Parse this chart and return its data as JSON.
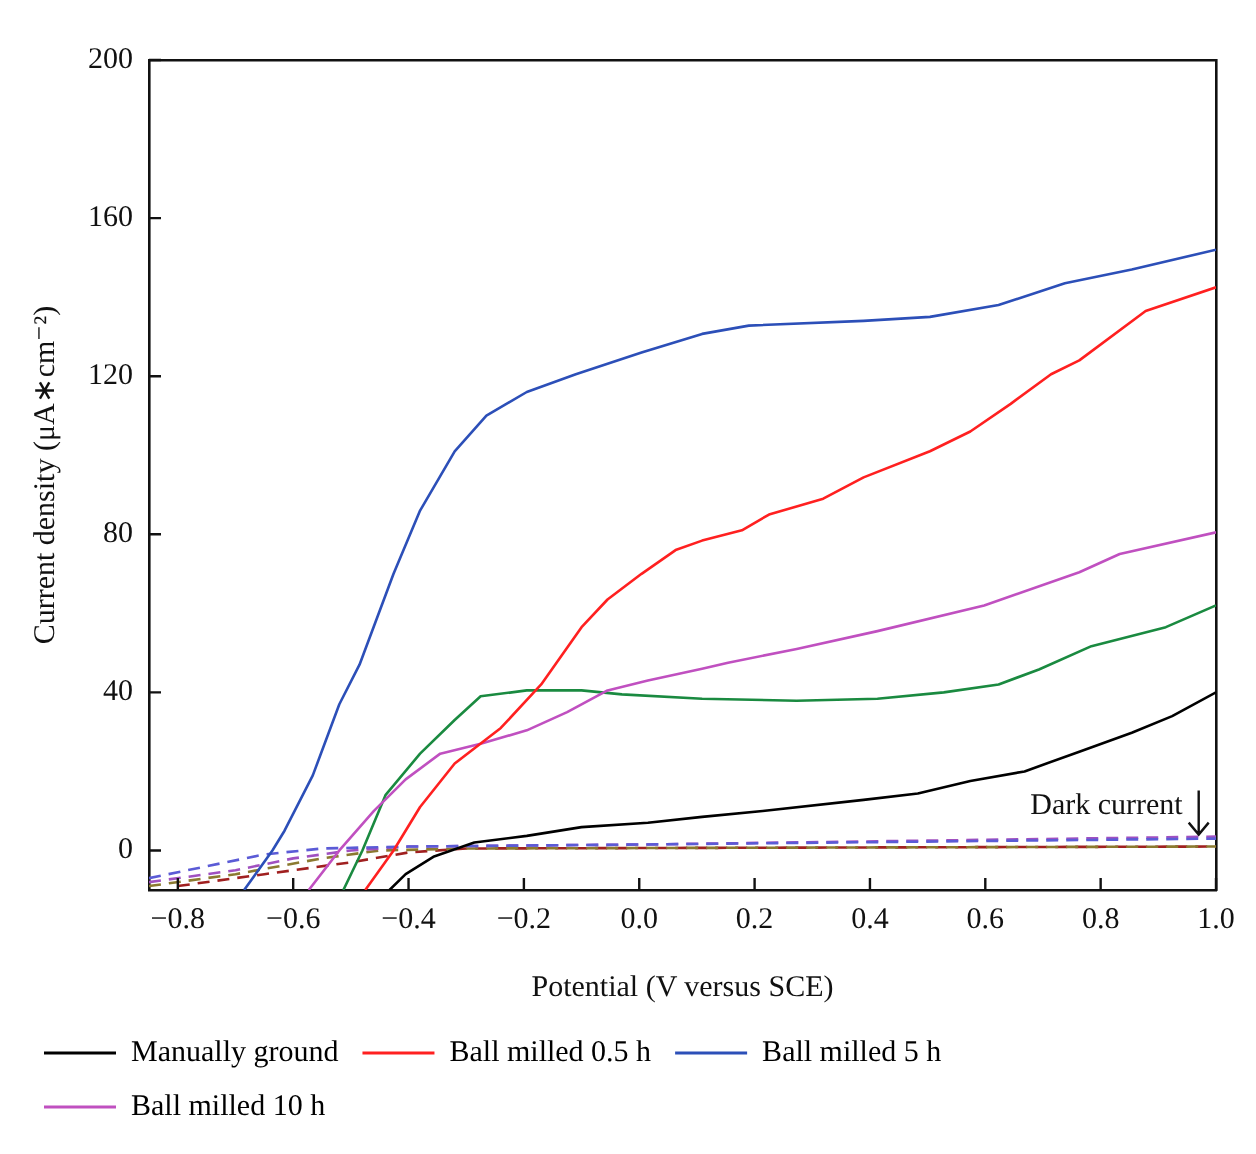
{
  "chart_data": {
    "type": "line",
    "xlabel": "Potential (V versus SCE)",
    "ylabel": "Current density (μA∗cm⁻²)",
    "xlim": [
      -0.85,
      1.0
    ],
    "xticks": [
      {
        "value": -0.8,
        "label": "−0.8"
      },
      {
        "value": -0.6,
        "label": "−0.6"
      },
      {
        "value": -0.4,
        "label": "−0.4"
      },
      {
        "value": -0.2,
        "label": "−0.2"
      },
      {
        "value": 0,
        "label": "0.0"
      },
      {
        "value": 0.2,
        "label": "0.2"
      },
      {
        "value": 0.4,
        "label": "0.4"
      },
      {
        "value": 0.6,
        "label": "0.6"
      },
      {
        "value": 0.8,
        "label": "0.8"
      },
      {
        "value": 1.0,
        "label": "1.0"
      }
    ],
    "ylim": [
      -10,
      200
    ],
    "yticks": [
      0,
      40,
      80,
      120,
      160,
      200
    ],
    "grid": false,
    "legend": "bottom",
    "marker": "none",
    "annotations": [
      {
        "text": "Dark current",
        "x": 0.97,
        "y": 3
      }
    ],
    "series": [
      {
        "name": "Manually ground",
        "color": "#000000",
        "line_style": "solid",
        "x": [
          -0.433,
          -0.405,
          -0.357,
          -0.286,
          -0.195,
          -0.1,
          0.015,
          0.109,
          0.214,
          0.389,
          0.483,
          0.574,
          0.668,
          0.763,
          0.854,
          0.924,
          1.0
        ],
        "values": [
          -10,
          -6,
          -1.6,
          2,
          3.7,
          5.9,
          7,
          8.5,
          10,
          12.8,
          14.4,
          17.6,
          20,
          25,
          29.8,
          34,
          40
        ]
      },
      {
        "name": "Ball milled 0.5 h",
        "color": "#ff2020",
        "line_style": "solid",
        "x": [
          -0.475,
          -0.426,
          -0.38,
          -0.32,
          -0.24,
          -0.17,
          -0.1,
          -0.055,
          0.004,
          0.063,
          0.109,
          0.178,
          0.225,
          0.319,
          0.389,
          0.504,
          0.574,
          0.644,
          0.714,
          0.763,
          0.878,
          1.0
        ],
        "values": [
          -10,
          0,
          11,
          22,
          31,
          42,
          56.5,
          63.5,
          70,
          76,
          78.4,
          81,
          85,
          89,
          94.4,
          101,
          106,
          113,
          120.5,
          124,
          136.5,
          142.5
        ]
      },
      {
        "name": "Ball milled 5 h",
        "color": "#2c4fb8",
        "line_style": "solid",
        "x": [
          -0.685,
          -0.636,
          -0.615,
          -0.566,
          -0.52,
          -0.485,
          -0.426,
          -0.38,
          -0.32,
          -0.265,
          -0.195,
          -0.11,
          0.004,
          0.109,
          0.19,
          0.389,
          0.504,
          0.623,
          0.738,
          0.854,
          1.0
        ],
        "values": [
          -10,
          0,
          5,
          19,
          37,
          47,
          70,
          86,
          101,
          110,
          116,
          120.5,
          126,
          130.7,
          132.8,
          134,
          135,
          138,
          143.5,
          147,
          152
        ]
      },
      {
        "name": "Ball milled 10 h",
        "color": "#c050c0",
        "line_style": "solid",
        "x": [
          -0.573,
          -0.52,
          -0.46,
          -0.405,
          -0.345,
          -0.275,
          -0.195,
          -0.125,
          -0.055,
          0.015,
          0.109,
          0.154,
          0.273,
          0.413,
          0.598,
          0.763,
          0.833,
          1.0
        ],
        "values": [
          -10,
          0,
          10,
          18,
          24.5,
          27,
          30.4,
          35,
          40.5,
          43,
          46,
          47.5,
          51,
          55.5,
          62,
          70.4,
          75,
          80.5
        ]
      },
      {
        "color": "#1a8a40",
        "line_style": "solid",
        "x": [
          -0.513,
          -0.48,
          -0.44,
          -0.38,
          -0.32,
          -0.275,
          -0.195,
          -0.1,
          -0.03,
          0.109,
          0.273,
          0.413,
          0.528,
          0.623,
          0.693,
          0.784,
          0.913,
          1.0
        ],
        "values": [
          -10,
          0,
          14,
          24.5,
          33,
          39,
          40.5,
          40.5,
          39.5,
          38.4,
          37.9,
          38.4,
          40,
          42,
          45.8,
          51.7,
          56.5,
          62
        ]
      },
      {
        "color": "#5b5bd6",
        "line_style": "dashed",
        "x": [
          -0.85,
          -0.75,
          -0.65,
          -0.55,
          -0.4,
          0,
          1.0
        ],
        "values": [
          -7,
          -4,
          -1,
          0.5,
          1,
          1.5,
          3
        ]
      },
      {
        "color": "#a050c0",
        "line_style": "dashed",
        "x": [
          -0.85,
          -0.7,
          -0.6,
          -0.5,
          -0.4,
          0,
          1.0
        ],
        "values": [
          -8,
          -5,
          -2,
          0,
          1,
          1.5,
          3.5
        ]
      },
      {
        "color": "#8b7a30",
        "line_style": "dashed",
        "x": [
          -0.85,
          -0.7,
          -0.55,
          -0.45,
          -0.3,
          1.0
        ],
        "values": [
          -9,
          -6,
          -2,
          0,
          0.5,
          1
        ]
      },
      {
        "color": "#a02020",
        "line_style": "dashed",
        "x": [
          -0.8,
          -0.65,
          -0.5,
          -0.4,
          -0.3,
          1.0
        ],
        "values": [
          -9,
          -6,
          -3,
          -0.5,
          0.5,
          1
        ]
      }
    ]
  }
}
